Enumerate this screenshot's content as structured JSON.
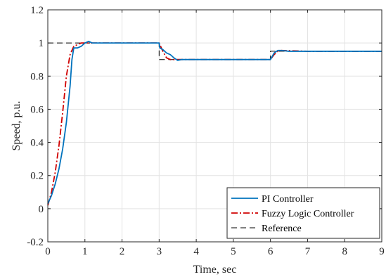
{
  "chart_data": {
    "type": "line",
    "xlabel": "Time, sec",
    "ylabel": "Speed, p.u.",
    "xlim": [
      0,
      9
    ],
    "ylim": [
      -0.2,
      1.2
    ],
    "xticks": [
      0,
      1,
      2,
      3,
      4,
      5,
      6,
      7,
      8,
      9
    ],
    "xtick_labels": [
      "0",
      "1",
      "2",
      "3",
      "4",
      "5",
      "6",
      "7",
      "8",
      "9"
    ],
    "yticks": [
      -0.2,
      0,
      0.2,
      0.4,
      0.6,
      0.8,
      1,
      1.2
    ],
    "ytick_labels": [
      "-0.2",
      "0",
      "0.2",
      "0.4",
      "0.6",
      "0.8",
      "1",
      "1.2"
    ],
    "grid": true,
    "legend_position": "bottom-right",
    "series": [
      {
        "name": "PI Controller",
        "color": "#0072BD",
        "style": "solid",
        "x": [
          0,
          0.1,
          0.2,
          0.3,
          0.4,
          0.5,
          0.6,
          0.65,
          0.7,
          0.8,
          0.9,
          1.0,
          1.1,
          1.2,
          2.0,
          3.0,
          3.02,
          3.1,
          3.2,
          3.3,
          3.4,
          3.5,
          3.6,
          4.0,
          5.0,
          6.0,
          6.05,
          6.1,
          6.2,
          6.3,
          6.5,
          7.0,
          8.0,
          9.0
        ],
        "y": [
          0.03,
          0.08,
          0.15,
          0.24,
          0.36,
          0.52,
          0.74,
          0.9,
          0.97,
          0.97,
          0.98,
          1.0,
          1.01,
          1.0,
          1.0,
          1.0,
          0.97,
          0.96,
          0.94,
          0.93,
          0.91,
          0.895,
          0.9,
          0.9,
          0.9,
          0.9,
          0.92,
          0.94,
          0.955,
          0.955,
          0.95,
          0.95,
          0.95,
          0.95
        ]
      },
      {
        "name": "Fuzzy Logic Controller",
        "color": "#D00000",
        "style": "dashdot",
        "x": [
          0,
          0.1,
          0.2,
          0.3,
          0.4,
          0.5,
          0.6,
          0.7,
          0.8,
          0.9,
          1.0,
          1.5,
          2.0,
          3.0,
          3.1,
          3.2,
          3.3,
          3.5,
          4.0,
          5.0,
          6.0,
          6.1,
          6.2,
          6.3,
          7.0,
          8.0,
          9.0
        ],
        "y": [
          0.02,
          0.1,
          0.22,
          0.38,
          0.58,
          0.8,
          0.93,
          0.98,
          0.99,
          1.0,
          1.0,
          1.0,
          1.0,
          1.0,
          0.95,
          0.91,
          0.9,
          0.9,
          0.9,
          0.9,
          0.9,
          0.93,
          0.95,
          0.955,
          0.95,
          0.95,
          0.95
        ]
      },
      {
        "name": "Reference",
        "color": "#000000",
        "style": "dashed",
        "x": [
          0,
          3,
          3,
          6,
          6,
          9
        ],
        "y": [
          1.0,
          1.0,
          0.9,
          0.9,
          0.95,
          0.95
        ]
      }
    ]
  }
}
